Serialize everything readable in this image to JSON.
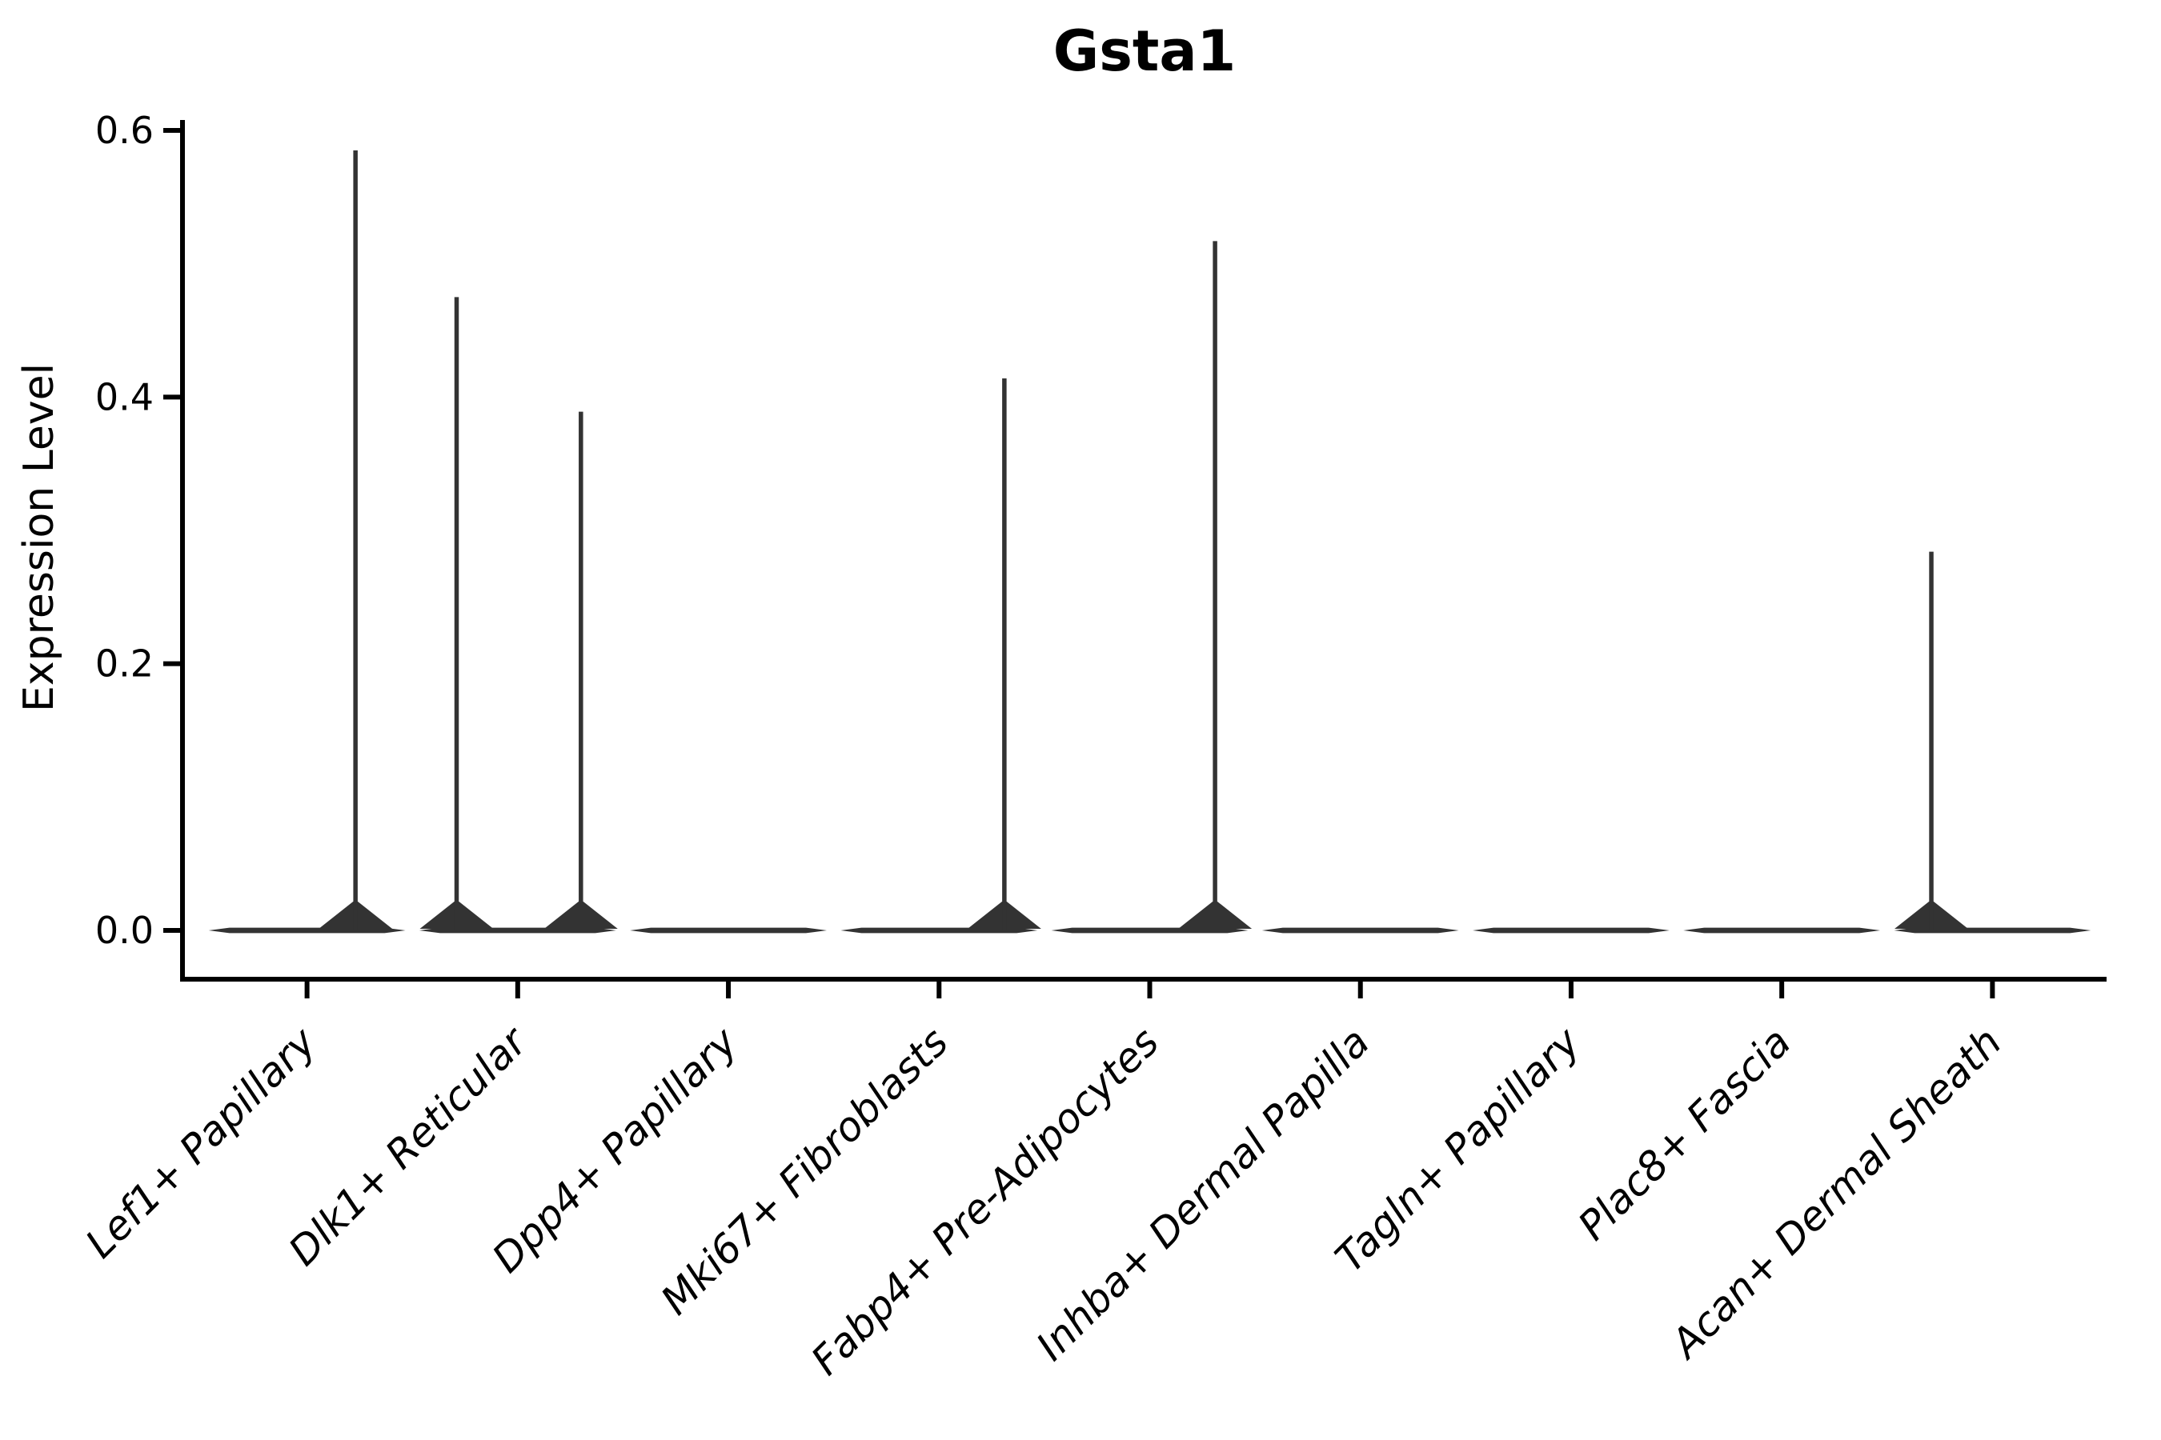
{
  "figure": {
    "background": "#ffffff"
  },
  "chart_data": {
    "type": "violin",
    "title": "Gsta1",
    "xlabel": "",
    "ylabel": "Expression Level",
    "ylim": [
      0,
      0.62
    ],
    "grid": false,
    "legend": "none",
    "axis_color": "#000000",
    "violin_color": "#333333",
    "yticks": [
      {
        "label": "0.0",
        "value": 0.0
      },
      {
        "label": "0.2",
        "value": 0.2
      },
      {
        "label": "0.4",
        "value": 0.4
      },
      {
        "label": "0.6",
        "value": 0.6
      }
    ],
    "categories": [
      "Lef1+ Papillary",
      "Dlk1+ Reticular",
      "Dpp4+ Papillary",
      "Mki67+ Fibroblasts",
      "Fabp4+ Pre-Adipocytes",
      "Inhba+ Dermal Papilla",
      "Tagln+ Papillary",
      "Plac8+ Fascia",
      "Acan+ Dermal Sheath"
    ],
    "series": [
      {
        "category": "Lef1+ Papillary",
        "zero_bar": true,
        "spikes": [
          {
            "value": 0.585,
            "offset": 0.23
          }
        ]
      },
      {
        "category": "Dlk1+ Reticular",
        "zero_bar": true,
        "spikes": [
          {
            "value": 0.475,
            "offset": -0.29
          },
          {
            "value": 0.389,
            "offset": 0.3
          }
        ]
      },
      {
        "category": "Dpp4+ Papillary",
        "zero_bar": true,
        "spikes": []
      },
      {
        "category": "Mki67+ Fibroblasts",
        "zero_bar": true,
        "spikes": [
          {
            "value": 0.414,
            "offset": 0.31
          }
        ]
      },
      {
        "category": "Fabp4+ Pre-Adipocytes",
        "zero_bar": true,
        "spikes": [
          {
            "value": 0.517,
            "offset": 0.31
          }
        ]
      },
      {
        "category": "Inhba+ Dermal Papilla",
        "zero_bar": true,
        "spikes": []
      },
      {
        "category": "Tagln+ Papillary",
        "zero_bar": true,
        "spikes": []
      },
      {
        "category": "Plac8+ Fascia",
        "zero_bar": true,
        "spikes": []
      },
      {
        "category": "Acan+ Dermal Sheath",
        "zero_bar": true,
        "spikes": [
          {
            "value": 0.284,
            "offset": -0.29
          }
        ]
      }
    ]
  }
}
